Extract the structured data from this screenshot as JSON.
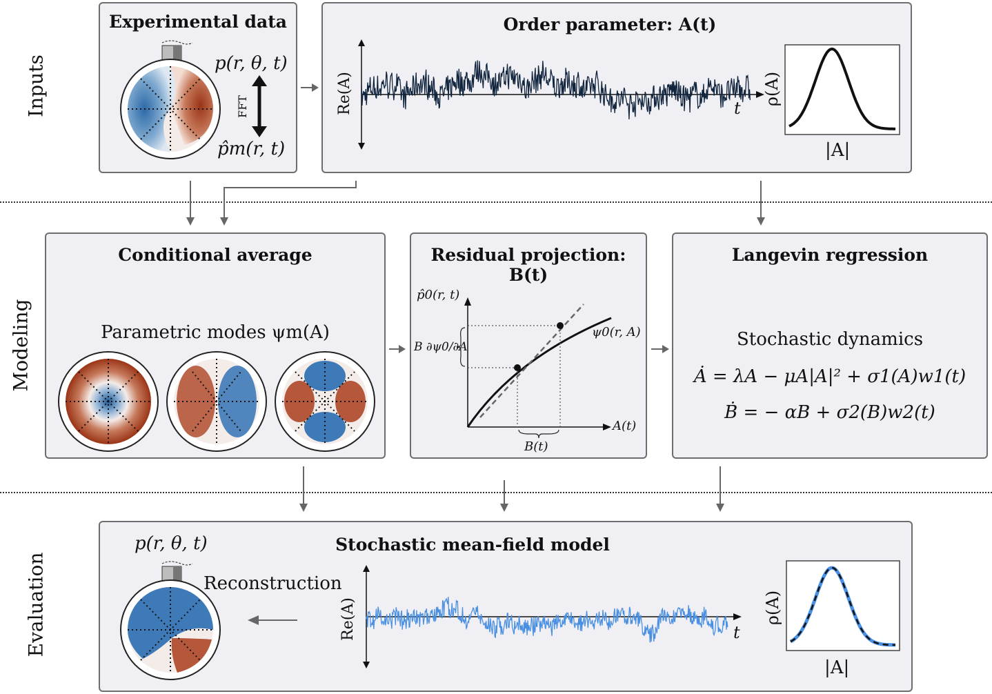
{
  "rows": {
    "inputs": "Inputs",
    "modeling": "Modeling",
    "evaluation": "Evaluation"
  },
  "experimental": {
    "title": "Experimental data",
    "p_label": "p(r, θ, t)",
    "fft_label": "FFT",
    "phat_label": "p̂m(r, t)"
  },
  "order_param": {
    "title": "Order parameter: A(t)",
    "ylabel": "Re(A)",
    "xlabel": "t",
    "pdf_ylabel": "ρ(A)",
    "pdf_xlabel": "|A|"
  },
  "conditional": {
    "title": "Conditional average",
    "subtitle": "Parametric modes ψm(A)"
  },
  "residual": {
    "title": "Residual projection: B(t)",
    "ylabel": "p̂0(r, t)",
    "xlabel": "A(t)",
    "curve_label": "ψ0(r, A)",
    "brace_label_b": "B(t)",
    "deriv_label": "B ∂ψ0/∂A"
  },
  "langevin": {
    "title": "Langevin regression",
    "subtitle": "Stochastic dynamics",
    "eq1": "Ȧ = λA − μA|A|² + σ1(A)w1(t)",
    "eq2": "Ḃ = − αB + σ2(B)w2(t)"
  },
  "model": {
    "title": "Stochastic mean-field model",
    "p_label": "p(r, θ, t)",
    "recon_label": "Reconstruction",
    "ylabel": "Re(A)",
    "xlabel": "t",
    "pdf_ylabel": "ρ(A)",
    "pdf_xlabel": "|A|"
  },
  "colors": {
    "panel_bg": "#f0eff3",
    "signal_dark": "#10243d",
    "signal_blue": "#4a90e2",
    "mode_red": "#a03a1a",
    "mode_blue": "#2c6aa8",
    "arrow": "#666666"
  }
}
